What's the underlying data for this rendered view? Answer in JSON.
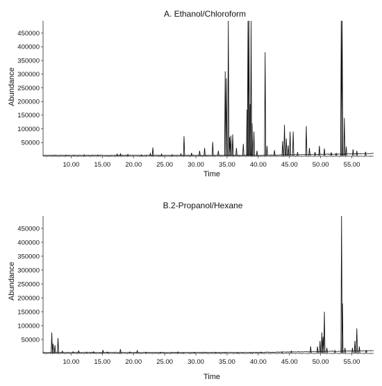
{
  "chart_data": [
    {
      "type": "line",
      "title": "A. Ethanol/Chloroform",
      "xlabel": "Time",
      "ylabel": "Abundance",
      "xlim": [
        5.5,
        58.5
      ],
      "ylim": [
        0,
        495000
      ],
      "xticks": [
        10,
        15,
        20,
        25,
        30,
        35,
        40,
        45,
        50,
        55
      ],
      "xtick_labels": [
        "10.00",
        "15.00",
        "20.00",
        "25.00",
        "30.00",
        "35.00",
        "40.00",
        "45.00",
        "50.00",
        "55.00"
      ],
      "yticks": [
        50000,
        100000,
        150000,
        200000,
        250000,
        300000,
        350000,
        400000,
        450000
      ],
      "ytick_labels": [
        "50000",
        "100000",
        "150000",
        "200000",
        "250000",
        "300000",
        "350000",
        "400000",
        "450000"
      ],
      "baseline": 2000,
      "peaks": [
        [
          9.2,
          4000
        ],
        [
          12.1,
          5000
        ],
        [
          14.3,
          4000
        ],
        [
          17.4,
          8000
        ],
        [
          17.9,
          9000
        ],
        [
          19.1,
          7000
        ],
        [
          21.3,
          5000
        ],
        [
          22.7,
          10000
        ],
        [
          23.1,
          32000
        ],
        [
          24.5,
          8000
        ],
        [
          26.2,
          6000
        ],
        [
          27.6,
          9000
        ],
        [
          28.1,
          73000
        ],
        [
          29.3,
          12000
        ],
        [
          30.6,
          20000
        ],
        [
          31.4,
          30000
        ],
        [
          32.7,
          52000
        ],
        [
          33.6,
          20000
        ],
        [
          34.7,
          310000
        ],
        [
          34.9,
          285000
        ],
        [
          35.2,
          495000
        ],
        [
          35.4,
          70000
        ],
        [
          35.6,
          75000
        ],
        [
          35.9,
          80000
        ],
        [
          36.5,
          30000
        ],
        [
          37.6,
          45000
        ],
        [
          38.2,
          170000
        ],
        [
          38.35,
          495000
        ],
        [
          38.5,
          495000
        ],
        [
          38.7,
          190000
        ],
        [
          38.85,
          495000
        ],
        [
          39.0,
          120000
        ],
        [
          39.3,
          90000
        ],
        [
          39.8,
          20000
        ],
        [
          41.1,
          380000
        ],
        [
          41.4,
          38000
        ],
        [
          42.6,
          22000
        ],
        [
          43.9,
          55000
        ],
        [
          44.2,
          115000
        ],
        [
          44.5,
          65000
        ],
        [
          44.8,
          40000
        ],
        [
          45.1,
          90000
        ],
        [
          45.6,
          90000
        ],
        [
          46.3,
          15000
        ],
        [
          47.7,
          110000
        ],
        [
          48.2,
          30000
        ],
        [
          49.1,
          15000
        ],
        [
          49.8,
          38000
        ],
        [
          50.6,
          28000
        ],
        [
          51.7,
          14000
        ],
        [
          52.5,
          10000
        ],
        [
          53.3,
          495000
        ],
        [
          53.45,
          495000
        ],
        [
          53.8,
          140000
        ],
        [
          54.1,
          35000
        ],
        [
          55.2,
          25000
        ],
        [
          55.8,
          20000
        ],
        [
          57.2,
          16000
        ]
      ]
    },
    {
      "type": "line",
      "title": "B.2-Propanol/Hexane",
      "xlabel": "Time",
      "ylabel": "Abundance",
      "xlim": [
        5.5,
        58.5
      ],
      "ylim": [
        0,
        495000
      ],
      "xticks": [
        10,
        15,
        20,
        25,
        30,
        35,
        40,
        45,
        50,
        55
      ],
      "xtick_labels": [
        "10.00",
        "15.00",
        "20.00",
        "25.00",
        "30.00",
        "35.00",
        "40.00",
        "45.00",
        "50.00",
        "55.00"
      ],
      "yticks": [
        50000,
        100000,
        150000,
        200000,
        250000,
        300000,
        350000,
        400000,
        450000
      ],
      "ytick_labels": [
        "50000",
        "100000",
        "150000",
        "200000",
        "250000",
        "300000",
        "350000",
        "400000",
        "450000"
      ],
      "baseline": 2000,
      "peaks": [
        [
          6.9,
          75000
        ],
        [
          7.1,
          35000
        ],
        [
          7.4,
          30000
        ],
        [
          7.9,
          55000
        ],
        [
          8.6,
          8000
        ],
        [
          10.3,
          6000
        ],
        [
          11.2,
          9000
        ],
        [
          12.5,
          5000
        ],
        [
          13.6,
          6000
        ],
        [
          15.1,
          12000
        ],
        [
          15.8,
          5000
        ],
        [
          17.9,
          15000
        ],
        [
          19.4,
          5000
        ],
        [
          20.6,
          10000
        ],
        [
          22.0,
          4000
        ],
        [
          24.3,
          4000
        ],
        [
          27.1,
          5000
        ],
        [
          29.8,
          4000
        ],
        [
          33.2,
          4000
        ],
        [
          36.7,
          3000
        ],
        [
          40.5,
          4000
        ],
        [
          43.8,
          5000
        ],
        [
          45.3,
          8000
        ],
        [
          48.4,
          25000
        ],
        [
          49.5,
          25000
        ],
        [
          49.9,
          45000
        ],
        [
          50.2,
          75000
        ],
        [
          50.4,
          60000
        ],
        [
          50.6,
          150000
        ],
        [
          51.0,
          20000
        ],
        [
          52.3,
          10000
        ],
        [
          53.35,
          495000
        ],
        [
          53.5,
          180000
        ],
        [
          53.9,
          20000
        ],
        [
          55.1,
          20000
        ],
        [
          55.5,
          45000
        ],
        [
          55.8,
          90000
        ],
        [
          56.2,
          25000
        ],
        [
          57.3,
          12000
        ]
      ]
    }
  ]
}
